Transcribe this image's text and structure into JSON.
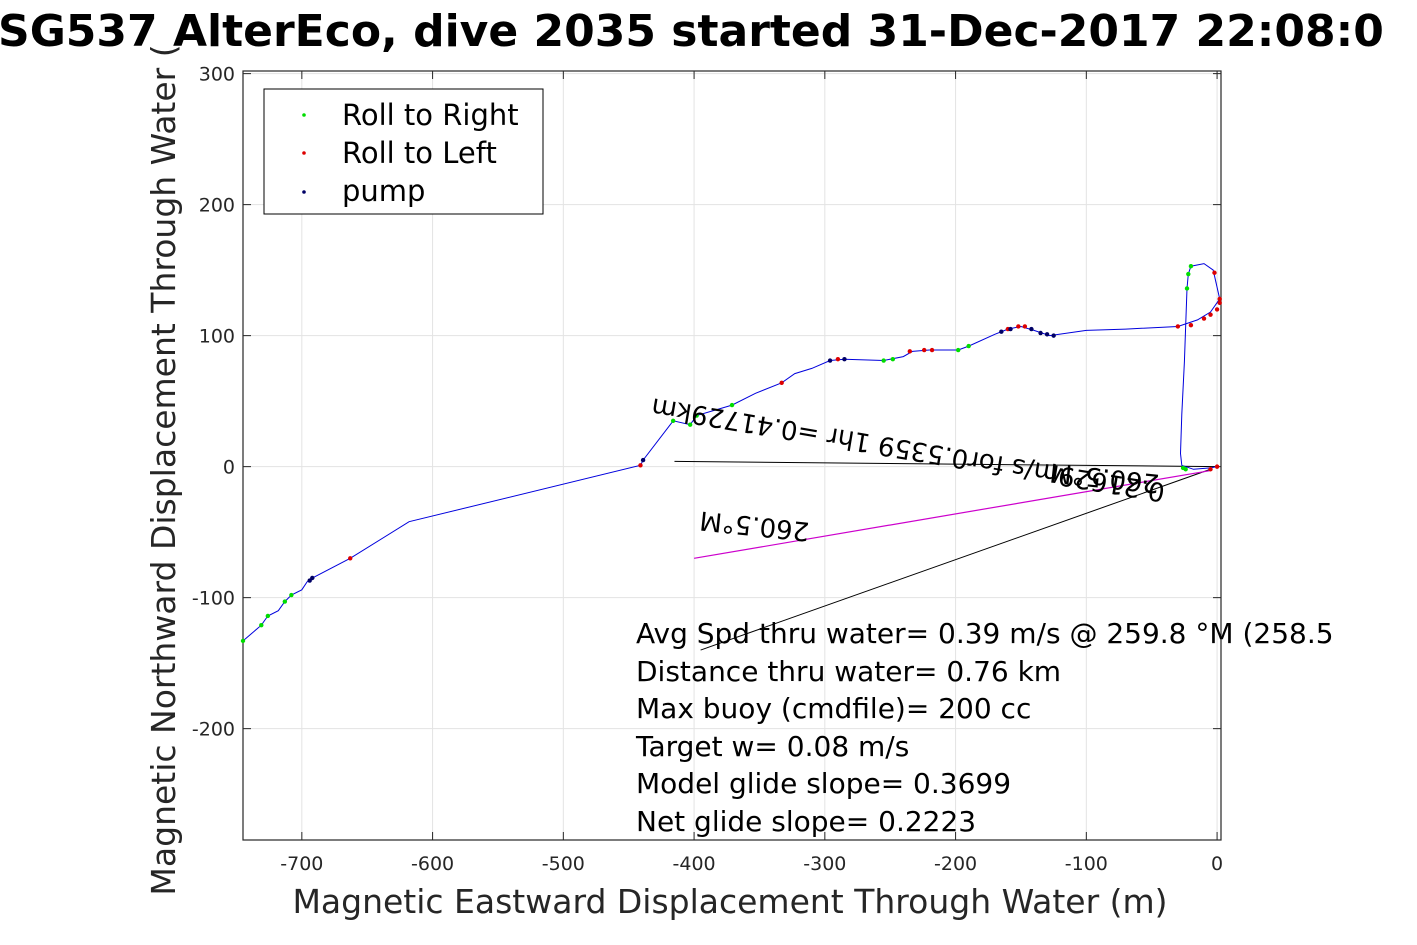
{
  "chart_data": {
    "type": "line",
    "title": "SG537 AlterEco, dive 2035 started 31-Dec-2017 22:08:0",
    "xlabel": "Magnetic Eastward Displacement Through Water (m)",
    "ylabel": "Magnetic Northward Displacement Through Water (",
    "xlim": [
      -745,
      3
    ],
    "ylim": [
      -285,
      302
    ],
    "xticks": [
      -700,
      -600,
      -500,
      -400,
      -300,
      -200,
      -100,
      0
    ],
    "xtick_labels": [
      "-700",
      "-600",
      "-500",
      "-400",
      "-300",
      "-200",
      "-100",
      "0"
    ],
    "yticks": [
      300,
      200,
      100,
      0,
      -100,
      -200
    ],
    "ytick_labels": [
      "300",
      "200",
      "100",
      "0",
      "-100",
      "-200"
    ],
    "grid": true,
    "legend_position": "top-left",
    "legend": [
      {
        "label": "Roll to Right",
        "color": "#00dd00"
      },
      {
        "label": "Roll to Left",
        "color": "#dd0000"
      },
      {
        "label": "pump",
        "color": "#000066"
      }
    ],
    "track": {
      "color": "#0000dd",
      "points": [
        [
          -745,
          -133
        ],
        [
          -738,
          -127
        ],
        [
          -731,
          -121
        ],
        [
          -726,
          -114
        ],
        [
          -718,
          -110
        ],
        [
          -713,
          -103
        ],
        [
          -708,
          -98
        ],
        [
          -700,
          -94
        ],
        [
          -696,
          -88
        ],
        [
          -692,
          -85
        ],
        [
          -663,
          -70
        ],
        [
          -618,
          -42
        ],
        [
          -441,
          1
        ],
        [
          -439,
          5
        ],
        [
          -416,
          35
        ],
        [
          -403,
          32
        ],
        [
          -398,
          39
        ],
        [
          -371,
          47
        ],
        [
          -353,
          56
        ],
        [
          -333,
          64
        ],
        [
          -323,
          71
        ],
        [
          -310,
          75
        ],
        [
          -296,
          81
        ],
        [
          -285,
          82
        ],
        [
          -255,
          81
        ],
        [
          -240,
          84
        ],
        [
          -233,
          88
        ],
        [
          -220,
          89
        ],
        [
          -198,
          89
        ],
        [
          -190,
          92
        ],
        [
          -170,
          101
        ],
        [
          -160,
          105
        ],
        [
          -150,
          107
        ],
        [
          -140,
          104
        ],
        [
          -128,
          100
        ],
        [
          -100,
          104
        ],
        [
          -70,
          105
        ],
        [
          -30,
          107
        ],
        [
          -15,
          112
        ],
        [
          -5,
          118
        ],
        [
          2,
          128
        ],
        [
          -3,
          150
        ],
        [
          -10,
          155
        ],
        [
          -20,
          153
        ],
        [
          -22,
          147
        ],
        [
          -23,
          136
        ],
        [
          -25,
          80
        ],
        [
          -27,
          40
        ],
        [
          -28,
          10
        ],
        [
          -27,
          1
        ],
        [
          -18,
          -2
        ],
        [
          -5,
          -1
        ],
        [
          0,
          0
        ]
      ]
    },
    "roll_right_points": [
      [
        -745,
        -133
      ],
      [
        -731,
        -121
      ],
      [
        -726,
        -114
      ],
      [
        -713,
        -103
      ],
      [
        -708,
        -98
      ],
      [
        -416,
        35
      ],
      [
        -403,
        32
      ],
      [
        -398,
        39
      ],
      [
        -371,
        47
      ],
      [
        -255,
        81
      ],
      [
        -248,
        82
      ],
      [
        -198,
        89
      ],
      [
        -190,
        92
      ],
      [
        -20,
        153
      ],
      [
        -22,
        147
      ],
      [
        -23,
        136
      ],
      [
        -26,
        -1
      ],
      [
        -24,
        -2
      ]
    ],
    "roll_left_points": [
      [
        -663,
        -70
      ],
      [
        -441,
        1
      ],
      [
        -333,
        64
      ],
      [
        -290,
        82
      ],
      [
        -235,
        88
      ],
      [
        -224,
        89
      ],
      [
        -218,
        89
      ],
      [
        -160,
        105
      ],
      [
        -152,
        107
      ],
      [
        -147,
        107
      ],
      [
        -30,
        107
      ],
      [
        -20,
        108
      ],
      [
        -10,
        113
      ],
      [
        -5,
        116
      ],
      [
        0,
        120
      ],
      [
        2,
        125
      ],
      [
        2,
        128
      ],
      [
        -2,
        148
      ],
      [
        -5,
        -2
      ],
      [
        0,
        0
      ]
    ],
    "pump_points": [
      [
        -694,
        -87
      ],
      [
        -692,
        -85
      ],
      [
        -439,
        5
      ],
      [
        -296,
        81
      ],
      [
        -285,
        82
      ],
      [
        -165,
        103
      ],
      [
        -158,
        105
      ],
      [
        -142,
        105
      ],
      [
        -135,
        102
      ],
      [
        -130,
        101
      ],
      [
        -125,
        100
      ]
    ],
    "depth_avg_current_line": {
      "color": "#cc00cc",
      "from": [
        -400,
        -70
      ],
      "to": [
        -5,
        -3
      ]
    },
    "straight_lines": [
      {
        "from": [
          -415,
          4
        ],
        "to": [
          0,
          0
        ]
      },
      {
        "from": [
          -395,
          -140
        ],
        "to": [
          -5,
          -2
        ]
      }
    ],
    "rotated_annotations": {
      "heading_1": "260.5°M",
      "heading_2": "260.5°M",
      "current_text": "0.21629m/s for0.5359 1hr =0.41729km"
    },
    "stats_lines": [
      "Avg Spd thru water=  0.39 m/s @ 259.8 °M (258.5",
      "Distance thru water=  0.76 km",
      "Max buoy (cmdfile)= 200 cc",
      "Target w= 0.08 m/s",
      "Model glide slope= 0.3699",
      "Net glide slope= 0.2223"
    ]
  }
}
